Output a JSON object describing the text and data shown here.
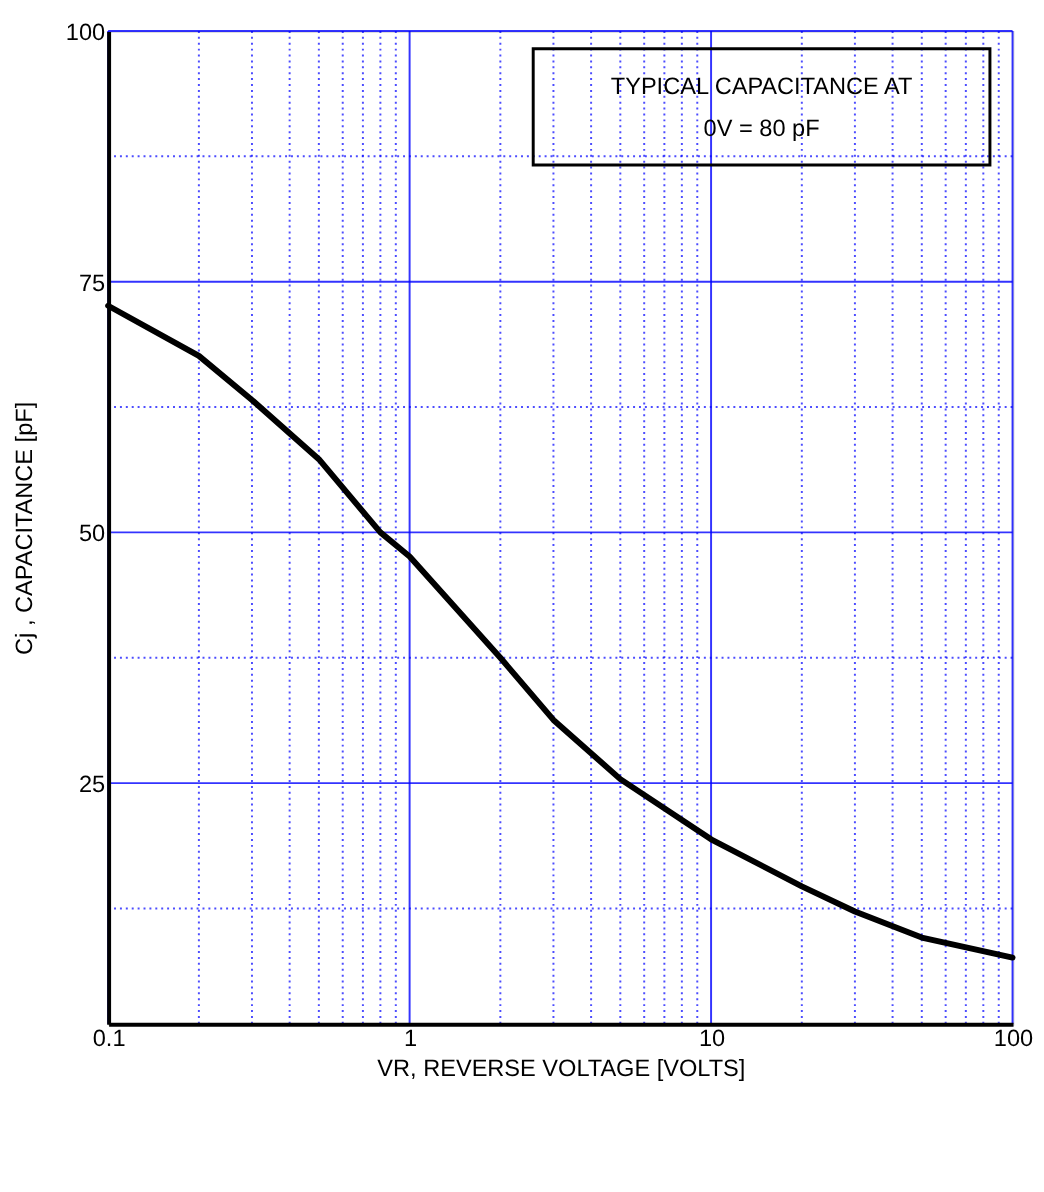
{
  "chart_data": {
    "type": "line",
    "xlabel": "VR, REVERSE VOLTAGE [VOLTS]",
    "ylabel": "Cj , CAPACITANCE [pF]",
    "annotations": [
      "TYPICAL CAPACITANCE AT",
      "0V = 80 pF"
    ],
    "log": "x",
    "xlim": [
      0.1,
      100
    ],
    "xticks": [
      {
        "value": 0.1,
        "label": "0.1"
      },
      {
        "value": 0.2,
        "label": null
      },
      {
        "value": 0.3,
        "label": null
      },
      {
        "value": 0.4,
        "label": null
      },
      {
        "value": 0.5,
        "label": null
      },
      {
        "value": 0.6,
        "label": null
      },
      {
        "value": 0.7,
        "label": null
      },
      {
        "value": 0.8,
        "label": null
      },
      {
        "value": 0.9,
        "label": null
      },
      1,
      {
        "value": 2,
        "label": null
      },
      {
        "value": 3,
        "label": null
      },
      {
        "value": 4,
        "label": null
      },
      {
        "value": 5,
        "label": null
      },
      {
        "value": 6,
        "label": null
      },
      {
        "value": 7,
        "label": null
      },
      {
        "value": 8,
        "label": null
      },
      {
        "value": 9,
        "label": null
      },
      10,
      {
        "value": 20,
        "label": null
      },
      {
        "value": 30,
        "label": null
      },
      {
        "value": 40,
        "label": null
      },
      {
        "value": 50,
        "label": null
      },
      {
        "value": 60,
        "label": null
      },
      {
        "value": 70,
        "label": null
      },
      {
        "value": 80,
        "label": null
      },
      {
        "value": 90,
        "label": null
      },
      100
    ],
    "ylim": [
      1,
      100
    ],
    "yticks": [
      {
        "value": 12.5,
        "label": null
      },
      25,
      {
        "value": 37.5,
        "label": null
      },
      50,
      {
        "value": 62.5,
        "label": null
      },
      75,
      {
        "value": 87.5,
        "label": null
      },
      100
    ],
    "grid": true,
    "line_style": "solid",
    "series": [
      {
        "color": "#000000",
        "x": [
          0.1,
          0.2,
          0.3,
          0.5,
          0.8,
          1,
          2,
          3,
          5,
          10,
          20,
          30,
          50,
          100
        ],
        "values": [
          72.6,
          67.6,
          63.2,
          57.3,
          50.0,
          47.6,
          37.5,
          31.3,
          25.4,
          19.4,
          14.7,
          12.2,
          9.6,
          7.6
        ]
      }
    ]
  }
}
